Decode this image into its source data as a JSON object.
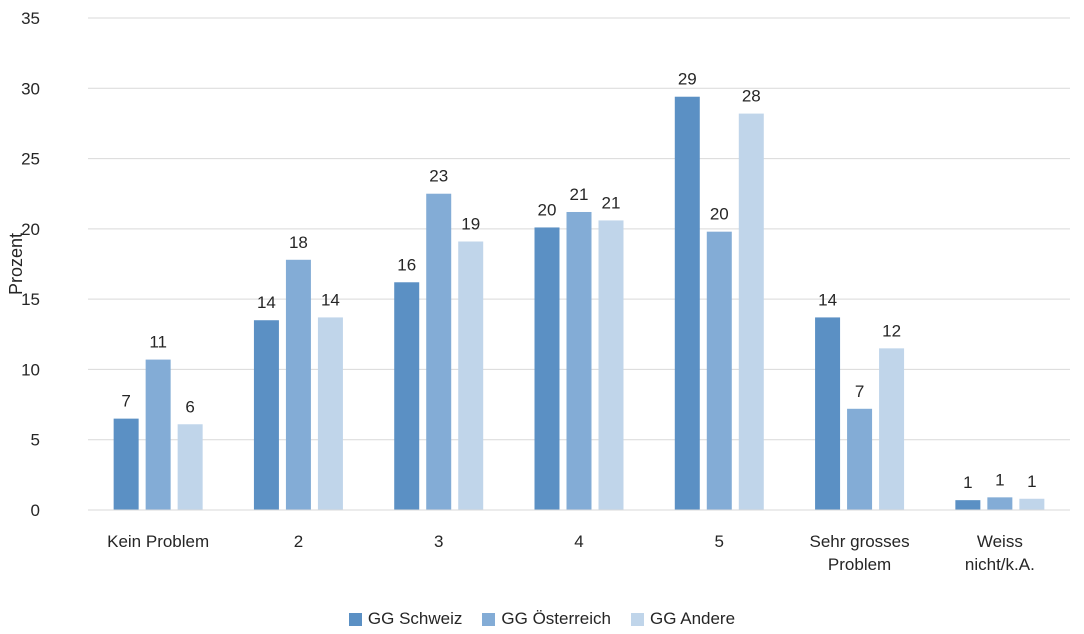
{
  "chart_data": {
    "type": "bar",
    "ylabel": "Prozent",
    "ylim": [
      0,
      35
    ],
    "yticks": [
      0,
      5,
      10,
      15,
      20,
      25,
      30,
      35
    ],
    "grid": true,
    "legend_position": "bottom",
    "categories": [
      [
        "Kein Problem"
      ],
      [
        "2"
      ],
      [
        "3"
      ],
      [
        "4"
      ],
      [
        "5"
      ],
      [
        "Sehr grosses",
        "Problem"
      ],
      [
        "Weiss",
        "nicht/k.A."
      ]
    ],
    "series": [
      {
        "name": "GG Schweiz",
        "color": "#5b90c4",
        "values": [
          6.5,
          13.5,
          16.2,
          20.1,
          29.4,
          13.7,
          0.7
        ],
        "labels": [
          "7",
          "14",
          "16",
          "20",
          "29",
          "14",
          "1"
        ]
      },
      {
        "name": "GG Österreich",
        "color": "#83acd6",
        "values": [
          10.7,
          17.8,
          22.5,
          21.2,
          19.8,
          7.2,
          0.9
        ],
        "labels": [
          "11",
          "18",
          "23",
          "21",
          "20",
          "7",
          "1"
        ]
      },
      {
        "name": "GG Andere",
        "color": "#c0d5ea",
        "values": [
          6.1,
          13.7,
          19.1,
          20.6,
          28.2,
          11.5,
          0.8
        ],
        "labels": [
          "6",
          "14",
          "19",
          "21",
          "28",
          "12",
          "1"
        ]
      }
    ]
  }
}
